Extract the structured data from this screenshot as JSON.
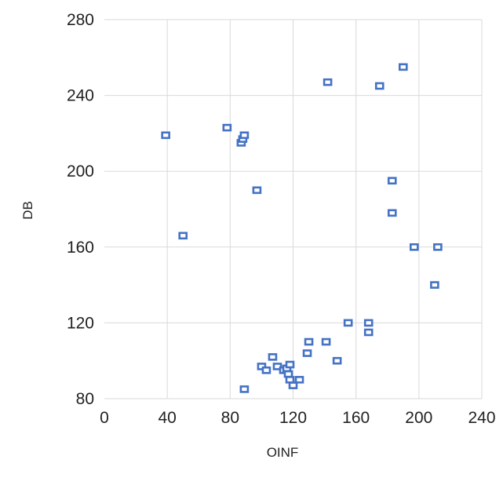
{
  "chart_data": {
    "type": "scatter",
    "title": "",
    "xlabel": "OINF",
    "ylabel": "DB",
    "xlim": [
      0,
      240
    ],
    "ylim": [
      80,
      280
    ],
    "xticks": [
      "0",
      "40",
      "80",
      "120",
      "160",
      "200",
      "240"
    ],
    "yticks": [
      "80",
      "120",
      "160",
      "200",
      "240",
      "280"
    ],
    "grid": true,
    "legend": "none",
    "marker_color": "#4472c4",
    "series": [
      {
        "points": [
          {
            "x": 39,
            "y": 219
          },
          {
            "x": 50,
            "y": 166
          },
          {
            "x": 78,
            "y": 223
          },
          {
            "x": 87,
            "y": 215
          },
          {
            "x": 88,
            "y": 217
          },
          {
            "x": 89,
            "y": 219
          },
          {
            "x": 97,
            "y": 190
          },
          {
            "x": 89,
            "y": 85
          },
          {
            "x": 100,
            "y": 97
          },
          {
            "x": 103,
            "y": 95
          },
          {
            "x": 107,
            "y": 102
          },
          {
            "x": 110,
            "y": 97
          },
          {
            "x": 114,
            "y": 95
          },
          {
            "x": 116,
            "y": 96
          },
          {
            "x": 117,
            "y": 93
          },
          {
            "x": 118,
            "y": 90
          },
          {
            "x": 118,
            "y": 98
          },
          {
            "x": 120,
            "y": 87
          },
          {
            "x": 124,
            "y": 90
          },
          {
            "x": 129,
            "y": 104
          },
          {
            "x": 130,
            "y": 110
          },
          {
            "x": 141,
            "y": 110
          },
          {
            "x": 142,
            "y": 247
          },
          {
            "x": 148,
            "y": 100
          },
          {
            "x": 155,
            "y": 120
          },
          {
            "x": 168,
            "y": 115
          },
          {
            "x": 168,
            "y": 120
          },
          {
            "x": 175,
            "y": 245
          },
          {
            "x": 183,
            "y": 178
          },
          {
            "x": 183,
            "y": 195
          },
          {
            "x": 190,
            "y": 255
          },
          {
            "x": 197,
            "y": 160
          },
          {
            "x": 210,
            "y": 140
          },
          {
            "x": 212,
            "y": 160
          }
        ]
      }
    ]
  }
}
